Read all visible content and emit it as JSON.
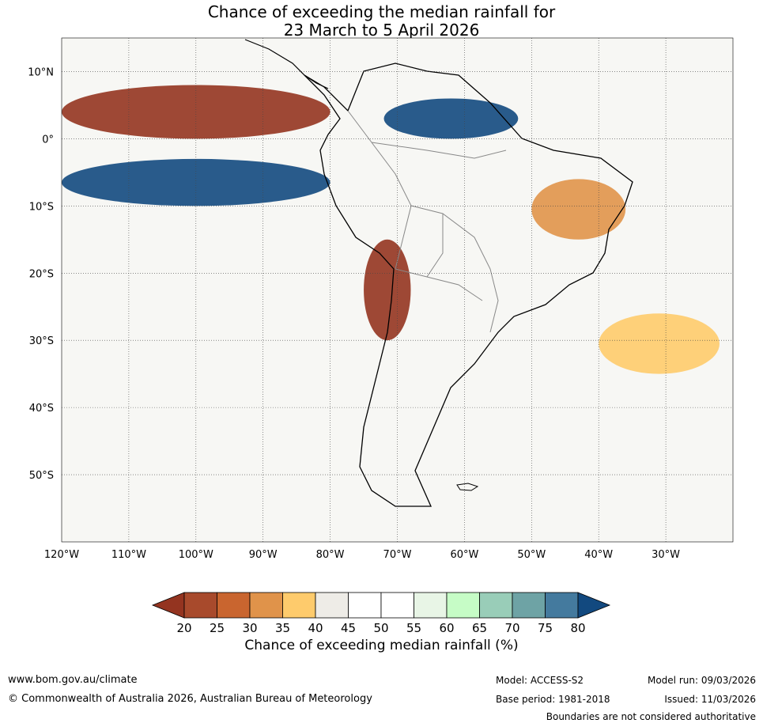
{
  "title": {
    "line1": "Chance of exceeding the median rainfall for",
    "line2": "23 March to 5 April 2026"
  },
  "map": {
    "lon_range": [
      -120,
      -20
    ],
    "lat_range": [
      -60,
      15
    ],
    "lat_labels": [
      "10°N",
      "0°",
      "10°S",
      "20°S",
      "30°S",
      "40°S",
      "50°S"
    ],
    "lat_values": [
      10,
      0,
      -10,
      -20,
      -30,
      -40,
      -50
    ],
    "lon_labels": [
      "120°W",
      "110°W",
      "100°W",
      "90°W",
      "80°W",
      "70°W",
      "60°W",
      "50°W",
      "40°W",
      "30°W"
    ],
    "lon_values": [
      -120,
      -110,
      -100,
      -90,
      -80,
      -70,
      -60,
      -50,
      -40,
      -30
    ],
    "regions": [
      {
        "band": "20-25",
        "label": "dry anomaly",
        "lon": [
          -120,
          -80
        ],
        "lat": [
          0,
          8
        ]
      },
      {
        "band": "75-80",
        "label": "wet anomaly",
        "lon": [
          -120,
          -80
        ],
        "lat": [
          -10,
          -3
        ]
      },
      {
        "band": "20-25",
        "label": "dry anomaly",
        "lon": [
          -75,
          -68
        ],
        "lat": [
          -30,
          -15
        ]
      },
      {
        "band": "30-35",
        "label": "dry anomaly",
        "lon": [
          -50,
          -36
        ],
        "lat": [
          -15,
          -6
        ]
      },
      {
        "band": "35-40",
        "label": "dry anomaly",
        "lon": [
          -40,
          -22
        ],
        "lat": [
          -35,
          -26
        ]
      },
      {
        "band": "75-80",
        "label": "wet anomaly",
        "lon": [
          -72,
          -52
        ],
        "lat": [
          0,
          6
        ]
      }
    ]
  },
  "colorbar": {
    "ticks": [
      "20",
      "25",
      "30",
      "35",
      "40",
      "45",
      "50",
      "55",
      "60",
      "65",
      "70",
      "75",
      "80"
    ],
    "colors": [
      "#a84a2c",
      "#c9652f",
      "#e0934a",
      "#fecb6c",
      "#eeece7",
      "#ffffff",
      "#ffffff",
      "#e8f5e6",
      "#c6fcc6",
      "#99cdb8",
      "#6ea3a5",
      "#447a9e"
    ],
    "under_color": "#943420",
    "over_color": "#12497f",
    "label": "Chance of exceeding median rainfall (%)"
  },
  "footer": {
    "website": "www.bom.gov.au/climate",
    "copyright": "© Commonwealth of Australia 2026, Australian Bureau of Meteorology",
    "model": "Model: ACCESS-S2",
    "base_period": "Base period: 1981-2018",
    "model_run": "Model run: 09/03/2026",
    "issued": "Issued: 11/03/2026",
    "disclaimer": "Boundaries are not considered authoritative"
  }
}
